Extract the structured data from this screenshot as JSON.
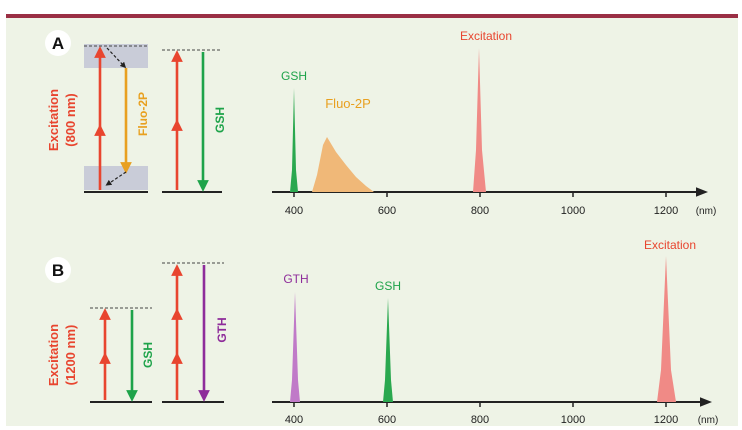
{
  "colors": {
    "frame_bar": "#9a2f44",
    "panel_bg": "#eef3e6",
    "excitation": "#e8452f",
    "gsh": "#1ea34a",
    "gth": "#8e2c9a",
    "fluo": "#e8a020",
    "axis": "#222222"
  },
  "panels": [
    {
      "letter": "A",
      "energy_axis_label_line1": "Excitation",
      "energy_axis_label_line2": "(800 nm)",
      "fluo_label": "Fluo-2P",
      "emission_label": "GSH",
      "spectrum_labels": {
        "excitation": "Excitation",
        "gsh": "GSH",
        "fluo": "Fluo-2P"
      },
      "ticks": [
        "400",
        "600",
        "800",
        "1000",
        "1200"
      ],
      "unit": "(nm)",
      "peaks": {
        "gsh": 400,
        "fluo_start": 445,
        "fluo_peak": 465,
        "fluo_end": 570,
        "excitation": 800
      }
    },
    {
      "letter": "B",
      "energy_axis_label_line1": "Excitation",
      "energy_axis_label_line2": "(1200 nm)",
      "emission_label_1": "GSH",
      "emission_label_2": "GTH",
      "spectrum_labels": {
        "gth": "GTH",
        "gsh": "GSH",
        "excitation": "Excitation"
      },
      "ticks": [
        "400",
        "600",
        "800",
        "1000",
        "1200"
      ],
      "unit": "(nm)",
      "peaks": {
        "gth": 400,
        "gsh": 600,
        "excitation": 1200
      }
    }
  ]
}
